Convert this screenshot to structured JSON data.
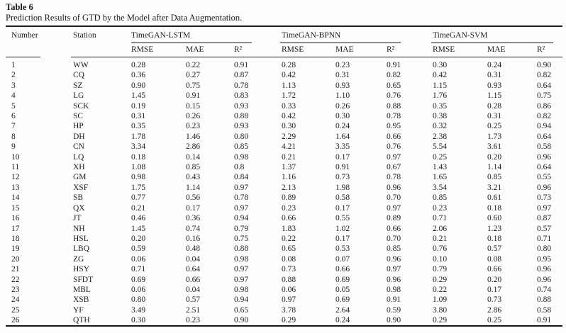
{
  "page": {
    "background": "#fdfdfc",
    "text_color": "#1c1c22",
    "rule_color": "#18181c"
  },
  "table": {
    "label": "Table 6",
    "caption": "Prediction Results of GTD by the Model after Data Augmentation.",
    "row_headers": {
      "number": "Number",
      "station": "Station"
    },
    "groups": [
      {
        "id": "lstm",
        "label": "TimeGAN-LSTM"
      },
      {
        "id": "bpnn",
        "label": "TimeGAN-BPNN"
      },
      {
        "id": "svm",
        "label": "TimeGAN-SVM"
      }
    ],
    "metric_headers": [
      "RMSE",
      "MAE",
      "R²"
    ],
    "rows": [
      {
        "number": "1",
        "station": "WW",
        "lstm": [
          "0.28",
          "0.22",
          "0.91"
        ],
        "bpnn": [
          "0.28",
          "0.23",
          "0.91"
        ],
        "svm": [
          "0.30",
          "0.24",
          "0.90"
        ]
      },
      {
        "number": "2",
        "station": "CQ",
        "lstm": [
          "0.36",
          "0.27",
          "0.87"
        ],
        "bpnn": [
          "0.42",
          "0.31",
          "0.82"
        ],
        "svm": [
          "0.42",
          "0.31",
          "0.82"
        ]
      },
      {
        "number": "3",
        "station": "SZ",
        "lstm": [
          "0.90",
          "0.75",
          "0.78"
        ],
        "bpnn": [
          "1.13",
          "0.93",
          "0.65"
        ],
        "svm": [
          "1.15",
          "0.93",
          "0.64"
        ]
      },
      {
        "number": "4",
        "station": "LG",
        "lstm": [
          "1.45",
          "0.91",
          "0.83"
        ],
        "bpnn": [
          "1.72",
          "1.10",
          "0.76"
        ],
        "svm": [
          "1.76",
          "1.15",
          "0.75"
        ]
      },
      {
        "number": "5",
        "station": "SCK",
        "lstm": [
          "0.19",
          "0.15",
          "0.93"
        ],
        "bpnn": [
          "0.33",
          "0.26",
          "0.88"
        ],
        "svm": [
          "0.35",
          "0.28",
          "0.86"
        ]
      },
      {
        "number": "6",
        "station": "SC",
        "lstm": [
          "0.31",
          "0.26",
          "0.88"
        ],
        "bpnn": [
          "0.42",
          "0.30",
          "0.78"
        ],
        "svm": [
          "0.38",
          "0.31",
          "0.82"
        ]
      },
      {
        "number": "7",
        "station": "HP",
        "lstm": [
          "0.35",
          "0.23",
          "0.93"
        ],
        "bpnn": [
          "0.30",
          "0.24",
          "0.95"
        ],
        "svm": [
          "0.32",
          "0.25",
          "0.94"
        ]
      },
      {
        "number": "8",
        "station": "DH",
        "lstm": [
          "1.78",
          "1.46",
          "0.80"
        ],
        "bpnn": [
          "2.29",
          "1.64",
          "0.66"
        ],
        "svm": [
          "2.38",
          "1.73",
          "0.64"
        ]
      },
      {
        "number": "9",
        "station": "CN",
        "lstm": [
          "3.34",
          "2.86",
          "0.85"
        ],
        "bpnn": [
          "4.21",
          "3.35",
          "0.76"
        ],
        "svm": [
          "5.54",
          "3.61",
          "0.58"
        ]
      },
      {
        "number": "10",
        "station": "LQ",
        "lstm": [
          "0.18",
          "0.14",
          "0.98"
        ],
        "bpnn": [
          "0.21",
          "0.17",
          "0.97"
        ],
        "svm": [
          "0.25",
          "0.20",
          "0.96"
        ]
      },
      {
        "number": "11",
        "station": "XH",
        "lstm": [
          "1.08",
          "0.85",
          "0.8"
        ],
        "bpnn": [
          "1.37",
          "0.91",
          "0.67"
        ],
        "svm": [
          "1.43",
          "1.14",
          "0.64"
        ]
      },
      {
        "number": "12",
        "station": "GM",
        "lstm": [
          "0.98",
          "0.43",
          "0.84"
        ],
        "bpnn": [
          "1.16",
          "0.73",
          "0.78"
        ],
        "svm": [
          "1.65",
          "0.85",
          "0.55"
        ]
      },
      {
        "number": "13",
        "station": "XSF",
        "lstm": [
          "1.75",
          "1.14",
          "0.97"
        ],
        "bpnn": [
          "2.13",
          "1.98",
          "0.96"
        ],
        "svm": [
          "3.54",
          "3.21",
          "0.96"
        ]
      },
      {
        "number": "14",
        "station": "SB",
        "lstm": [
          "0.77",
          "0.56",
          "0.78"
        ],
        "bpnn": [
          "0.89",
          "0.58",
          "0.70"
        ],
        "svm": [
          "0.85",
          "0.61",
          "0.73"
        ]
      },
      {
        "number": "15",
        "station": "QX",
        "lstm": [
          "0.21",
          "0.17",
          "0.97"
        ],
        "bpnn": [
          "0.23",
          "0.17",
          "0.97"
        ],
        "svm": [
          "0.23",
          "0.18",
          "0.97"
        ]
      },
      {
        "number": "16",
        "station": "JT",
        "lstm": [
          "0.46",
          "0.36",
          "0.94"
        ],
        "bpnn": [
          "0.66",
          "0.55",
          "0.89"
        ],
        "svm": [
          "0.71",
          "0.60",
          "0.87"
        ]
      },
      {
        "number": "17",
        "station": "NH",
        "lstm": [
          "1.45",
          "0.74",
          "0.79"
        ],
        "bpnn": [
          "1.83",
          "1.02",
          "0.66"
        ],
        "svm": [
          "2.06",
          "1.23",
          "0.57"
        ]
      },
      {
        "number": "18",
        "station": "HSL",
        "lstm": [
          "0.20",
          "0.16",
          "0.75"
        ],
        "bpnn": [
          "0.22",
          "0.17",
          "0.70"
        ],
        "svm": [
          "0.21",
          "0.18",
          "0.71"
        ]
      },
      {
        "number": "19",
        "station": "LBQ",
        "lstm": [
          "0.59",
          "0.48",
          "0.88"
        ],
        "bpnn": [
          "0.65",
          "0.53",
          "0.85"
        ],
        "svm": [
          "0.76",
          "0.57",
          "0.80"
        ]
      },
      {
        "number": "20",
        "station": "ZG",
        "lstm": [
          "0.06",
          "0.04",
          "0.98"
        ],
        "bpnn": [
          "0.08",
          "0.07",
          "0.96"
        ],
        "svm": [
          "0.10",
          "0.08",
          "0.95"
        ]
      },
      {
        "number": "21",
        "station": "HSY",
        "lstm": [
          "0.71",
          "0.64",
          "0.97"
        ],
        "bpnn": [
          "0.73",
          "0.66",
          "0.97"
        ],
        "svm": [
          "0.79",
          "0.66",
          "0.96"
        ]
      },
      {
        "number": "22",
        "station": "SFDT",
        "lstm": [
          "0.69",
          "0.66",
          "0.97"
        ],
        "bpnn": [
          "0.88",
          "0.69",
          "0.96"
        ],
        "svm": [
          "0.29",
          "0.20",
          "0.96"
        ]
      },
      {
        "number": "23",
        "station": "MBL",
        "lstm": [
          "0.06",
          "0.04",
          "0.98"
        ],
        "bpnn": [
          "0.06",
          "0.05",
          "0.98"
        ],
        "svm": [
          "0.22",
          "0.17",
          "0.74"
        ]
      },
      {
        "number": "24",
        "station": "XSB",
        "lstm": [
          "0.80",
          "0.57",
          "0.94"
        ],
        "bpnn": [
          "0.97",
          "0.69",
          "0.91"
        ],
        "svm": [
          "1.09",
          "0.73",
          "0.88"
        ]
      },
      {
        "number": "25",
        "station": "YF",
        "lstm": [
          "3.49",
          "2.51",
          "0.65"
        ],
        "bpnn": [
          "3.78",
          "2.64",
          "0.59"
        ],
        "svm": [
          "3.80",
          "2.86",
          "0.58"
        ]
      },
      {
        "number": "26",
        "station": "QTH",
        "lstm": [
          "0.30",
          "0.23",
          "0.90"
        ],
        "bpnn": [
          "0.29",
          "0.24",
          "0.90"
        ],
        "svm": [
          "0.29",
          "0.25",
          "0.91"
        ]
      }
    ]
  }
}
